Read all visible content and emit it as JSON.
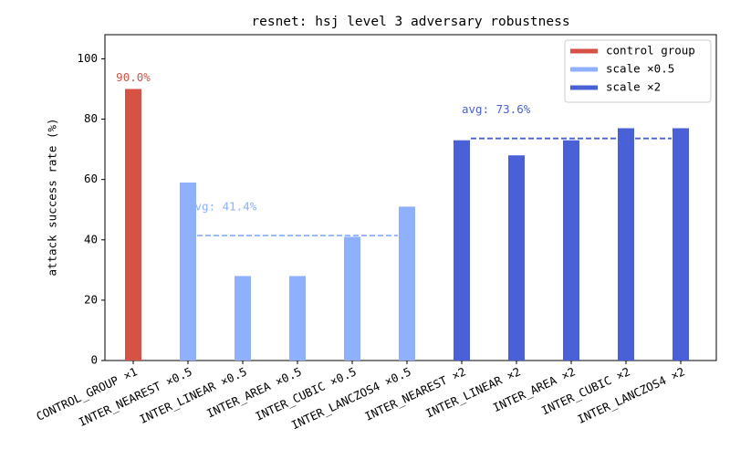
{
  "chart_data": {
    "type": "bar",
    "title": "resnet: hsj level 3 adversary robustness",
    "y_label": "attack success rate (%)",
    "categories": [
      "CONTROL_GROUP ×1",
      "INTER_NEAREST ×0.5",
      "INTER_LINEAR ×0.5",
      "INTER_AREA ×0.5",
      "INTER_CUBIC ×0.5",
      "INTER_LANCZOS4 ×0.5",
      "INTER_NEAREST ×2",
      "INTER_LINEAR ×2",
      "INTER_AREA ×2",
      "INTER_CUBIC ×2",
      "INTER_LANCZOS4 ×2"
    ],
    "series": [
      {
        "name": "control group",
        "color": "#d65244",
        "values": [
          90,
          null,
          null,
          null,
          null,
          null,
          null,
          null,
          null,
          null,
          null
        ],
        "value_labels": [
          "90.0%",
          null,
          null,
          null,
          null,
          null,
          null,
          null,
          null,
          null,
          null
        ]
      },
      {
        "name": "scale ×0.5",
        "color": "#8fb0fd",
        "values": [
          null,
          59,
          28,
          28,
          41,
          51,
          null,
          null,
          null,
          null,
          null
        ],
        "avg": 41.4,
        "avg_label": "avg: 41.4%"
      },
      {
        "name": "scale ×2",
        "color": "#4a60d6",
        "values": [
          null,
          null,
          null,
          null,
          null,
          null,
          73,
          68,
          73,
          77,
          77
        ],
        "avg": 73.6,
        "avg_label": "avg: 73.6%"
      }
    ],
    "ylim": [
      0,
      108
    ],
    "yticks": [
      0,
      20,
      40,
      60,
      80,
      100
    ],
    "grid": false,
    "legend": "upper right"
  }
}
